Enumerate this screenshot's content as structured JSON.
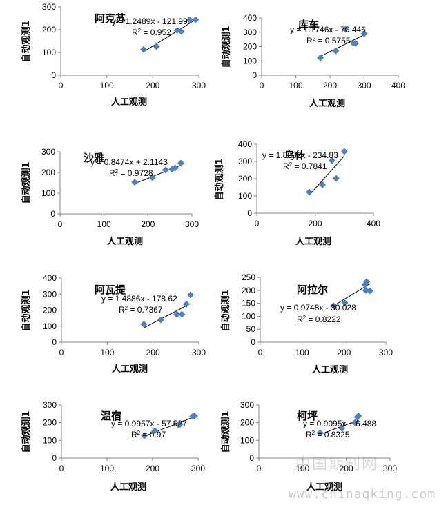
{
  "colors": {
    "marker": "#4f81bd",
    "trendline": "#000000",
    "axis": "#868686"
  },
  "watermark": {
    "site_name": "中国期刊网",
    "url": "www.chinaqking.com"
  },
  "chart_data": [
    {
      "type": "scatter",
      "title": "阿克苏",
      "xlabel": "人工观测",
      "ylabel": "自动观测1",
      "xlim": [
        0,
        300
      ],
      "ylim": [
        0,
        300
      ],
      "xticks": [
        0,
        100,
        200,
        300
      ],
      "yticks": [
        0,
        100,
        200,
        300
      ],
      "equation": "y = 1.2489x - 121.99",
      "r2_prefix": "R",
      "r2_value": " = 0.952",
      "trendline": {
        "slope": 1.2489,
        "intercept": -121.99
      },
      "points": [
        [
          180,
          113
        ],
        [
          208,
          126
        ],
        [
          253,
          197
        ],
        [
          262,
          192
        ],
        [
          280,
          243
        ],
        [
          293,
          244
        ]
      ]
    },
    {
      "type": "scatter",
      "title": "库车",
      "xlabel": "人工观测",
      "ylabel": "自动观测1",
      "xlim": [
        0,
        400
      ],
      "ylim": [
        0,
        400
      ],
      "xticks": [
        0,
        100,
        200,
        300,
        400
      ],
      "yticks": [
        0,
        100,
        200,
        300,
        400
      ],
      "equation": "y = 1.1746x - 70.446",
      "r2_prefix": "R",
      "r2_value": " = 0.5755",
      "trendline": {
        "slope": 1.1746,
        "intercept": -70.446
      },
      "points": [
        [
          172,
          122
        ],
        [
          217,
          170
        ],
        [
          245,
          320
        ],
        [
          268,
          225
        ],
        [
          275,
          222
        ],
        [
          300,
          290
        ]
      ]
    },
    {
      "type": "scatter",
      "title": "沙雅",
      "xlabel": "人工观测",
      "ylabel": "自动观测1",
      "xlim": [
        0,
        300
      ],
      "ylim": [
        0,
        300
      ],
      "xticks": [
        0,
        100,
        200,
        300
      ],
      "yticks": [
        0,
        100,
        200,
        300
      ],
      "equation": "y = 0.8474x + 2.1143",
      "r2_prefix": "R",
      "r2_value": " = 0.9728",
      "trendline": {
        "slope": 0.8474,
        "intercept": 2.1143
      },
      "points": [
        [
          170,
          153
        ],
        [
          210,
          175
        ],
        [
          240,
          212
        ],
        [
          255,
          216
        ],
        [
          262,
          222
        ],
        [
          275,
          245
        ]
      ]
    },
    {
      "type": "scatter",
      "title": "乌什",
      "xlabel": "人工观测",
      "ylabel": "自动观测1",
      "xlim": [
        0,
        400
      ],
      "ylim": [
        0,
        400
      ],
      "xticks": [
        0,
        200,
        400
      ],
      "yticks": [
        0,
        100,
        200,
        300,
        400
      ],
      "equation": "y = 1.8882x - 234.83",
      "r2_prefix": "R",
      "r2_value": " = 0.7841",
      "trendline": {
        "slope": 1.8882,
        "intercept": -234.83
      },
      "points": [
        [
          180,
          122
        ],
        [
          225,
          165
        ],
        [
          258,
          305
        ],
        [
          272,
          202
        ],
        [
          300,
          358
        ]
      ]
    },
    {
      "type": "scatter",
      "title": "阿瓦提",
      "xlabel": "人工观测",
      "ylabel": "自动观测1",
      "xlim": [
        0,
        300
      ],
      "ylim": [
        0,
        400
      ],
      "xticks": [
        0,
        100,
        200,
        300
      ],
      "yticks": [
        0,
        100,
        200,
        300,
        400
      ],
      "equation": "y = 1.4886x - 178.62",
      "r2_prefix": "R",
      "r2_value": " = 0.7367",
      "trendline": {
        "slope": 1.4886,
        "intercept": -178.62
      },
      "points": [
        [
          180,
          112
        ],
        [
          217,
          140
        ],
        [
          252,
          173
        ],
        [
          263,
          174
        ],
        [
          273,
          237
        ],
        [
          282,
          295
        ]
      ]
    },
    {
      "type": "scatter",
      "title": "阿拉尔",
      "xlabel": "人工观测",
      "ylabel": "自动观测1",
      "xlim": [
        0,
        300
      ],
      "ylim": [
        0,
        250
      ],
      "xticks": [
        0,
        100,
        200,
        300
      ],
      "yticks": [
        0,
        50,
        100,
        150,
        200,
        250
      ],
      "equation": "y = 0.9748x - 30.028",
      "r2_prefix": "R",
      "r2_value": " = 0.8222",
      "trendline": {
        "slope": 0.9748,
        "intercept": -30.028
      },
      "points": [
        [
          175,
          140
        ],
        [
          202,
          152
        ],
        [
          250,
          222
        ],
        [
          254,
          233
        ],
        [
          252,
          200
        ],
        [
          262,
          198
        ]
      ]
    },
    {
      "type": "scatter",
      "title": "温宿",
      "xlabel": "人工观测",
      "ylabel": "自动观测1",
      "xlim": [
        0,
        300
      ],
      "ylim": [
        0,
        300
      ],
      "xticks": [
        0,
        100,
        200,
        300
      ],
      "yticks": [
        0,
        100,
        200,
        300
      ],
      "equation": "y = 0.9957x - 57.527",
      "r2_prefix": "R",
      "r2_value": " = 0.97",
      "trendline": {
        "slope": 0.9957,
        "intercept": -57.527
      },
      "points": [
        [
          182,
          126
        ],
        [
          205,
          155
        ],
        [
          257,
          188
        ],
        [
          260,
          190
        ],
        [
          288,
          235
        ],
        [
          292,
          238
        ]
      ]
    },
    {
      "type": "scatter",
      "title": "柯坪",
      "xlabel": "人工观测",
      "ylabel": "自动观测1",
      "xlim": [
        0,
        300
      ],
      "ylim": [
        0,
        300
      ],
      "xticks": [
        0,
        100,
        200,
        300
      ],
      "yticks": [
        0,
        100,
        200,
        300
      ],
      "equation": "y = 0.9095x + 6.488",
      "r2_prefix": "R",
      "r2_value": " = 0.8325",
      "trendline": {
        "slope": 0.9095,
        "intercept": 6.488
      },
      "points": [
        [
          140,
          142
        ],
        [
          190,
          168
        ],
        [
          220,
          200
        ],
        [
          225,
          232
        ],
        [
          228,
          238
        ]
      ]
    }
  ]
}
